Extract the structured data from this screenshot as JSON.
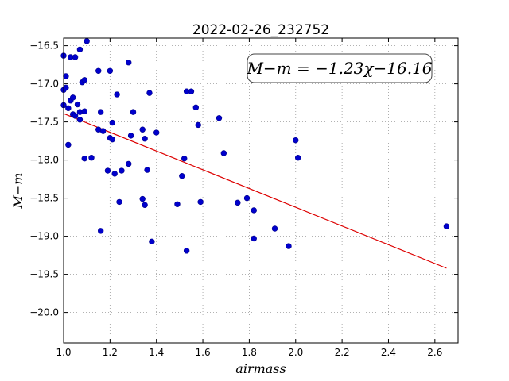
{
  "chart_data": {
    "type": "scatter",
    "title": "2022-02-26_232752",
    "xlabel": "airmass",
    "ylabel": "M−m",
    "xlim": [
      1.0,
      2.7
    ],
    "ylim": [
      -16.4,
      -20.4
    ],
    "y_inverted": true,
    "grid": true,
    "x_ticks": [
      "1.0",
      "1.2",
      "1.4",
      "1.6",
      "1.8",
      "2.0",
      "2.2",
      "2.4",
      "2.6"
    ],
    "y_ticks": [
      "−16.5",
      "−17.0",
      "−17.5",
      "−18.0",
      "−18.5",
      "−19.0",
      "−19.5",
      "−20.0"
    ],
    "annotation": {
      "text": "M−m = −1.23χ−16.16",
      "position": "top-right"
    },
    "colors": {
      "points": "#0000cc",
      "fit_line": "#dd0000",
      "grid": "#999999",
      "axes": "#000000"
    },
    "fit_line": {
      "slope": -1.23,
      "intercept": -16.16,
      "x_range": [
        1.0,
        2.65
      ]
    },
    "points": [
      {
        "x": 1.0,
        "y": -16.63
      },
      {
        "x": 1.03,
        "y": -16.65
      },
      {
        "x": 1.05,
        "y": -16.65
      },
      {
        "x": 1.07,
        "y": -16.55
      },
      {
        "x": 1.1,
        "y": -16.44
      },
      {
        "x": 1.01,
        "y": -16.9
      },
      {
        "x": 1.08,
        "y": -16.98
      },
      {
        "x": 1.09,
        "y": -16.95
      },
      {
        "x": 1.0,
        "y": -17.08
      },
      {
        "x": 1.01,
        "y": -17.05
      },
      {
        "x": 1.03,
        "y": -17.22
      },
      {
        "x": 1.04,
        "y": -17.18
      },
      {
        "x": 1.06,
        "y": -17.27
      },
      {
        "x": 1.02,
        "y": -17.32
      },
      {
        "x": 1.0,
        "y": -17.28
      },
      {
        "x": 1.04,
        "y": -17.4
      },
      {
        "x": 1.05,
        "y": -17.42
      },
      {
        "x": 1.07,
        "y": -17.37
      },
      {
        "x": 1.09,
        "y": -17.36
      },
      {
        "x": 1.07,
        "y": -17.47
      },
      {
        "x": 1.02,
        "y": -17.8
      },
      {
        "x": 1.09,
        "y": -17.98
      },
      {
        "x": 1.12,
        "y": -17.97
      },
      {
        "x": 1.15,
        "y": -16.83
      },
      {
        "x": 1.2,
        "y": -16.83
      },
      {
        "x": 1.28,
        "y": -16.72
      },
      {
        "x": 1.16,
        "y": -17.37
      },
      {
        "x": 1.23,
        "y": -17.14
      },
      {
        "x": 1.21,
        "y": -17.51
      },
      {
        "x": 1.15,
        "y": -17.6
      },
      {
        "x": 1.17,
        "y": -17.62
      },
      {
        "x": 1.2,
        "y": -17.71
      },
      {
        "x": 1.21,
        "y": -17.73
      },
      {
        "x": 1.3,
        "y": -17.37
      },
      {
        "x": 1.37,
        "y": -17.12
      },
      {
        "x": 1.34,
        "y": -17.6
      },
      {
        "x": 1.35,
        "y": -17.72
      },
      {
        "x": 1.29,
        "y": -17.68
      },
      {
        "x": 1.4,
        "y": -17.64
      },
      {
        "x": 1.19,
        "y": -18.14
      },
      {
        "x": 1.22,
        "y": -18.18
      },
      {
        "x": 1.25,
        "y": -18.14
      },
      {
        "x": 1.28,
        "y": -18.05
      },
      {
        "x": 1.36,
        "y": -18.13
      },
      {
        "x": 1.24,
        "y": -18.55
      },
      {
        "x": 1.34,
        "y": -18.51
      },
      {
        "x": 1.35,
        "y": -18.59
      },
      {
        "x": 1.16,
        "y": -18.93
      },
      {
        "x": 1.38,
        "y": -19.07
      },
      {
        "x": 1.53,
        "y": -17.1
      },
      {
        "x": 1.55,
        "y": -17.1
      },
      {
        "x": 1.57,
        "y": -17.31
      },
      {
        "x": 1.58,
        "y": -17.54
      },
      {
        "x": 1.52,
        "y": -17.98
      },
      {
        "x": 1.51,
        "y": -18.21
      },
      {
        "x": 1.49,
        "y": -18.58
      },
      {
        "x": 1.59,
        "y": -18.55
      },
      {
        "x": 1.53,
        "y": -19.19
      },
      {
        "x": 1.67,
        "y": -17.45
      },
      {
        "x": 1.69,
        "y": -17.91
      },
      {
        "x": 1.75,
        "y": -18.56
      },
      {
        "x": 1.79,
        "y": -18.5
      },
      {
        "x": 1.82,
        "y": -18.66
      },
      {
        "x": 1.82,
        "y": -19.03
      },
      {
        "x": 1.91,
        "y": -18.9
      },
      {
        "x": 1.97,
        "y": -19.13
      },
      {
        "x": 2.0,
        "y": -17.74
      },
      {
        "x": 2.01,
        "y": -17.97
      },
      {
        "x": 2.65,
        "y": -18.87
      }
    ]
  }
}
